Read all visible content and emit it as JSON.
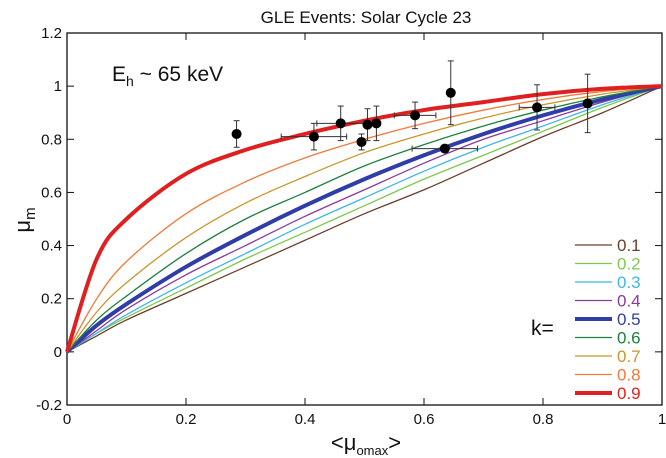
{
  "chart_data": {
    "type": "line",
    "title": "GLE Events: Solar Cycle 23",
    "annotation": {
      "main": "E",
      "sub": "h",
      "rest": " ~ 65 keV"
    },
    "xlabel": {
      "open": "<μ",
      "sub": "omax",
      "close": ">"
    },
    "ylabel": {
      "main": "μ",
      "sub": "m"
    },
    "xlim": [
      0,
      1
    ],
    "ylim": [
      -0.2,
      1.2
    ],
    "xticks": [
      0,
      0.2,
      0.4,
      0.6,
      0.8,
      1
    ],
    "xtick_labels": [
      "0",
      "0.2",
      "0.4",
      "0.6",
      "0.8",
      "1"
    ],
    "yticks": [
      -0.2,
      0,
      0.2,
      0.4,
      0.6,
      0.8,
      1,
      1.2
    ],
    "ytick_labels": [
      "-0.2",
      "0",
      "0.2",
      "0.4",
      "0.6",
      "0.8",
      "1",
      "1.2"
    ],
    "legend_prefix": "k=",
    "legend_placement": "bottom-right",
    "grid": false,
    "curve_x": [
      0,
      0.05,
      0.1,
      0.2,
      0.3,
      0.4,
      0.5,
      0.6,
      0.7,
      0.8,
      0.9,
      1.0
    ],
    "series": [
      {
        "name": "0.1",
        "color": "#6b3f2a",
        "emphasis": false,
        "values": [
          0,
          0.06,
          0.12,
          0.22,
          0.32,
          0.42,
          0.52,
          0.61,
          0.71,
          0.81,
          0.9,
          1.0
        ]
      },
      {
        "name": "0.2",
        "color": "#7ec850",
        "emphasis": false,
        "values": [
          0,
          0.07,
          0.13,
          0.24,
          0.35,
          0.45,
          0.55,
          0.65,
          0.74,
          0.83,
          0.92,
          1.0
        ]
      },
      {
        "name": "0.3",
        "color": "#3fb5e8",
        "emphasis": false,
        "values": [
          0,
          0.07,
          0.14,
          0.26,
          0.37,
          0.48,
          0.58,
          0.68,
          0.77,
          0.85,
          0.93,
          1.0
        ]
      },
      {
        "name": "0.4",
        "color": "#8b3a9e",
        "emphasis": false,
        "values": [
          0,
          0.08,
          0.16,
          0.29,
          0.4,
          0.51,
          0.61,
          0.71,
          0.8,
          0.87,
          0.94,
          1.0
        ]
      },
      {
        "name": "0.5",
        "color": "#2f3da8",
        "emphasis": true,
        "values": [
          0,
          0.1,
          0.18,
          0.32,
          0.44,
          0.55,
          0.65,
          0.74,
          0.82,
          0.89,
          0.95,
          1.0
        ]
      },
      {
        "name": "0.6",
        "color": "#1e8040",
        "emphasis": false,
        "values": [
          0,
          0.12,
          0.21,
          0.37,
          0.5,
          0.6,
          0.7,
          0.78,
          0.85,
          0.91,
          0.96,
          1.0
        ]
      },
      {
        "name": "0.7",
        "color": "#c8962a",
        "emphasis": false,
        "values": [
          0,
          0.15,
          0.26,
          0.43,
          0.56,
          0.66,
          0.75,
          0.82,
          0.88,
          0.93,
          0.97,
          1.0
        ]
      },
      {
        "name": "0.8",
        "color": "#f07a3a",
        "emphasis": false,
        "values": [
          0,
          0.2,
          0.34,
          0.52,
          0.64,
          0.73,
          0.8,
          0.86,
          0.91,
          0.95,
          0.98,
          1.0
        ]
      },
      {
        "name": "0.9",
        "color": "#e02020",
        "emphasis": true,
        "values": [
          0,
          0.35,
          0.5,
          0.67,
          0.76,
          0.82,
          0.87,
          0.91,
          0.94,
          0.97,
          0.99,
          1.0
        ]
      }
    ],
    "points": [
      {
        "x": 0.285,
        "y": 0.82,
        "xerr": 0.0,
        "yerr": 0.05
      },
      {
        "x": 0.415,
        "y": 0.81,
        "xerr": 0.055,
        "yerr": 0.05
      },
      {
        "x": 0.46,
        "y": 0.86,
        "xerr": 0.04,
        "yerr": 0.065
      },
      {
        "x": 0.495,
        "y": 0.79,
        "xerr": 0.0,
        "yerr": 0.03
      },
      {
        "x": 0.505,
        "y": 0.855,
        "xerr": 0.0,
        "yerr": 0.06
      },
      {
        "x": 0.52,
        "y": 0.86,
        "xerr": 0.0,
        "yerr": 0.065
      },
      {
        "x": 0.585,
        "y": 0.89,
        "xerr": 0.035,
        "yerr": 0.05
      },
      {
        "x": 0.635,
        "y": 0.765,
        "xerr": 0.055,
        "yerr": 0.0
      },
      {
        "x": 0.645,
        "y": 0.975,
        "xerr": 0.0,
        "yerr": 0.12
      },
      {
        "x": 0.79,
        "y": 0.92,
        "xerr": 0.03,
        "yerr": 0.085
      },
      {
        "x": 0.875,
        "y": 0.935,
        "xerr": 0.0,
        "yerr": 0.11
      }
    ]
  }
}
